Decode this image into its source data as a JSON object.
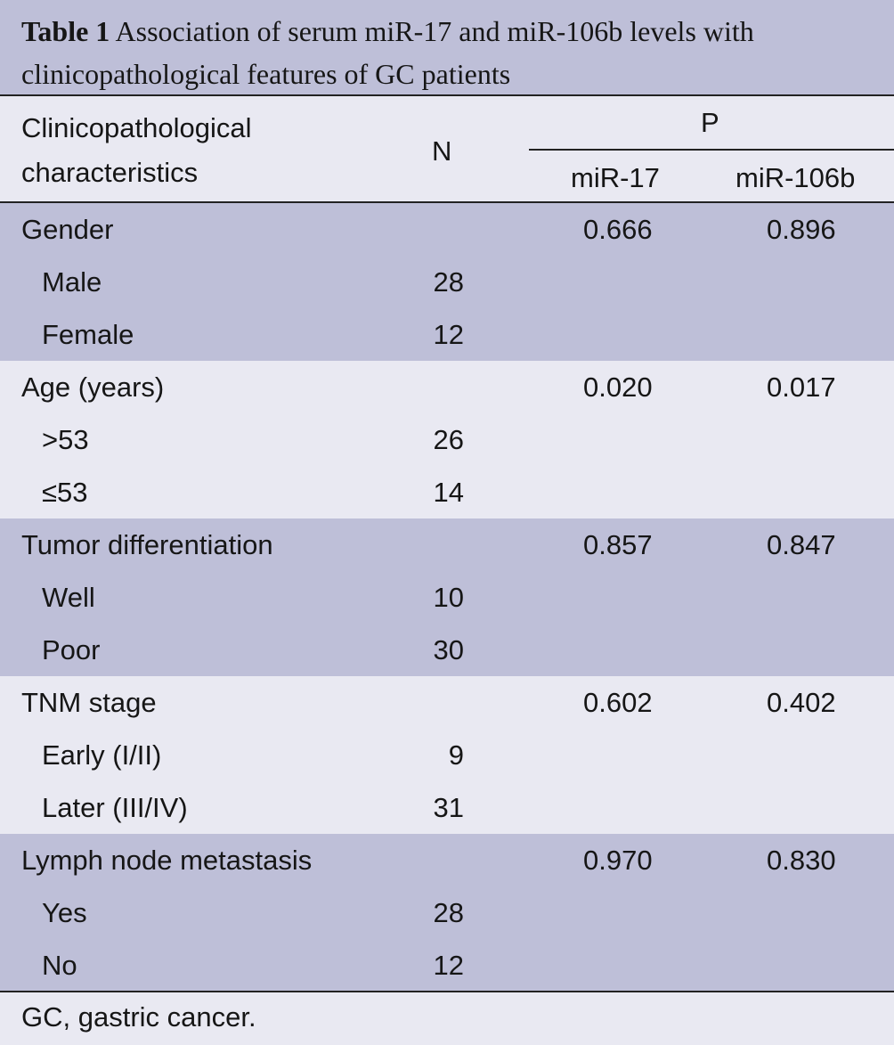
{
  "caption": {
    "label": "Table 1",
    "text": " Association of serum miR-17 and miR-106b levels with clinicopathological features of GC patients"
  },
  "header": {
    "characteristics_line1": "Clinicopathological",
    "characteristics_line2": "characteristics",
    "n": "N",
    "p": "P",
    "mir17": "miR-17",
    "mir106b": "miR-106b"
  },
  "groups": [
    {
      "name": "Gender",
      "mir17": "0.666",
      "mir106b": "0.896",
      "rows": [
        {
          "label": "Male",
          "n": "28"
        },
        {
          "label": "Female",
          "n": "12"
        }
      ]
    },
    {
      "name": "Age (years)",
      "mir17": "0.020",
      "mir106b": "0.017",
      "rows": [
        {
          "label": ">53",
          "n": "26"
        },
        {
          "label": "≤53",
          "n": "14"
        }
      ]
    },
    {
      "name": "Tumor differentiation",
      "mir17": "0.857",
      "mir106b": "0.847",
      "rows": [
        {
          "label": "Well",
          "n": "10"
        },
        {
          "label": "Poor",
          "n": "30"
        }
      ]
    },
    {
      "name": "TNM stage",
      "mir17": "0.602",
      "mir106b": "0.402",
      "rows": [
        {
          "label": "Early (I/II)",
          "n": "9"
        },
        {
          "label": "Later (III/IV)",
          "n": "31"
        }
      ]
    },
    {
      "name": "Lymph node metastasis",
      "mir17": "0.970",
      "mir106b": "0.830",
      "rows": [
        {
          "label": "Yes",
          "n": "28"
        },
        {
          "label": "No",
          "n": "12"
        }
      ]
    }
  ],
  "footnote": "GC, gastric cancer."
}
